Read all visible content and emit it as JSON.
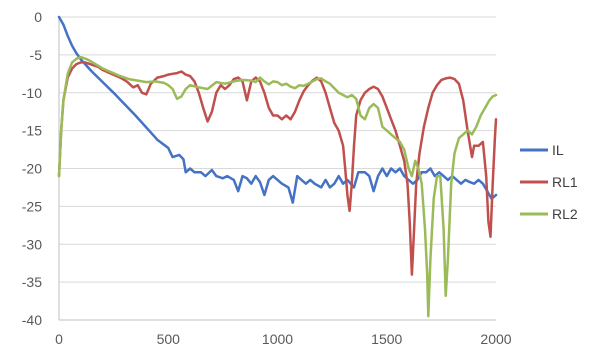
{
  "chart_data": {
    "type": "line",
    "title": "",
    "xlabel": "",
    "ylabel": "",
    "xlim": [
      0,
      2000
    ],
    "ylim": [
      -40,
      0
    ],
    "x_ticks": [
      0,
      500,
      1000,
      1500,
      2000
    ],
    "y_ticks": [
      0,
      -5,
      -10,
      -15,
      -20,
      -25,
      -30,
      -35,
      -40
    ],
    "x_tick_labels": [
      "0",
      "500",
      "1000",
      "1500",
      "2000"
    ],
    "y_tick_labels": [
      "0",
      "-5",
      "-10",
      "-15",
      "-20",
      "-25",
      "-30",
      "-35",
      "-40"
    ],
    "grid": "horizontal",
    "legend_position": "right",
    "series": [
      {
        "name": "IL",
        "color": "#4472c4",
        "points": [
          [
            0,
            0
          ],
          [
            20,
            -1
          ],
          [
            40,
            -2.5
          ],
          [
            60,
            -3.8
          ],
          [
            80,
            -4.8
          ],
          [
            100,
            -5.6
          ],
          [
            150,
            -7.2
          ],
          [
            200,
            -8.6
          ],
          [
            250,
            -10
          ],
          [
            300,
            -11.5
          ],
          [
            350,
            -13
          ],
          [
            400,
            -14.6
          ],
          [
            450,
            -16.2
          ],
          [
            500,
            -17.3
          ],
          [
            520,
            -18.5
          ],
          [
            550,
            -18.2
          ],
          [
            570,
            -18.8
          ],
          [
            580,
            -20.5
          ],
          [
            600,
            -20
          ],
          [
            620,
            -20.5
          ],
          [
            650,
            -20.5
          ],
          [
            670,
            -21
          ],
          [
            700,
            -20.2
          ],
          [
            720,
            -21
          ],
          [
            750,
            -21.3
          ],
          [
            770,
            -21
          ],
          [
            800,
            -21.5
          ],
          [
            820,
            -23
          ],
          [
            840,
            -21
          ],
          [
            860,
            -21.3
          ],
          [
            880,
            -22
          ],
          [
            900,
            -21
          ],
          [
            920,
            -21.8
          ],
          [
            940,
            -23.5
          ],
          [
            960,
            -21.5
          ],
          [
            980,
            -21
          ],
          [
            1000,
            -21.5
          ],
          [
            1020,
            -22
          ],
          [
            1050,
            -22.5
          ],
          [
            1070,
            -24.5
          ],
          [
            1090,
            -21
          ],
          [
            1110,
            -21.5
          ],
          [
            1130,
            -22
          ],
          [
            1150,
            -21.5
          ],
          [
            1170,
            -22
          ],
          [
            1200,
            -22.5
          ],
          [
            1220,
            -21.5
          ],
          [
            1240,
            -22.5
          ],
          [
            1260,
            -22
          ],
          [
            1280,
            -21
          ],
          [
            1300,
            -22
          ],
          [
            1320,
            -21.5
          ],
          [
            1350,
            -22.5
          ],
          [
            1370,
            -20.5
          ],
          [
            1400,
            -20.5
          ],
          [
            1420,
            -21
          ],
          [
            1440,
            -23
          ],
          [
            1460,
            -21
          ],
          [
            1480,
            -20
          ],
          [
            1500,
            -21
          ],
          [
            1520,
            -20
          ],
          [
            1540,
            -20.5
          ],
          [
            1560,
            -20
          ],
          [
            1580,
            -21
          ],
          [
            1600,
            -21.5
          ],
          [
            1620,
            -22
          ],
          [
            1640,
            -21.5
          ],
          [
            1660,
            -20.5
          ],
          [
            1680,
            -20.5
          ],
          [
            1700,
            -20
          ],
          [
            1720,
            -21
          ],
          [
            1740,
            -20.5
          ],
          [
            1760,
            -21
          ],
          [
            1780,
            -21.5
          ],
          [
            1800,
            -21
          ],
          [
            1820,
            -21.5
          ],
          [
            1840,
            -22
          ],
          [
            1860,
            -21.5
          ],
          [
            1880,
            -21.8
          ],
          [
            1900,
            -22
          ],
          [
            1920,
            -21.5
          ],
          [
            1940,
            -22
          ],
          [
            1960,
            -23
          ],
          [
            1980,
            -24
          ],
          [
            2000,
            -23.5
          ]
        ]
      },
      {
        "name": "RL1",
        "color": "#c0504d",
        "points": [
          [
            0,
            -21
          ],
          [
            10,
            -15
          ],
          [
            20,
            -11
          ],
          [
            40,
            -8
          ],
          [
            60,
            -6.8
          ],
          [
            80,
            -6.2
          ],
          [
            100,
            -6
          ],
          [
            120,
            -6
          ],
          [
            150,
            -6.3
          ],
          [
            180,
            -6.6
          ],
          [
            200,
            -7
          ],
          [
            240,
            -7.5
          ],
          [
            280,
            -8
          ],
          [
            310,
            -8.5
          ],
          [
            340,
            -9.3
          ],
          [
            360,
            -9
          ],
          [
            380,
            -10
          ],
          [
            400,
            -10.2
          ],
          [
            420,
            -8.8
          ],
          [
            450,
            -8
          ],
          [
            480,
            -7.8
          ],
          [
            500,
            -7.6
          ],
          [
            520,
            -7.5
          ],
          [
            540,
            -7.4
          ],
          [
            560,
            -7.2
          ],
          [
            580,
            -7.6
          ],
          [
            600,
            -7.8
          ],
          [
            620,
            -8.5
          ],
          [
            640,
            -10
          ],
          [
            660,
            -12
          ],
          [
            680,
            -13.8
          ],
          [
            700,
            -12.5
          ],
          [
            720,
            -10
          ],
          [
            740,
            -9
          ],
          [
            760,
            -9.5
          ],
          [
            780,
            -9
          ],
          [
            800,
            -8.2
          ],
          [
            820,
            -8
          ],
          [
            840,
            -8.5
          ],
          [
            860,
            -11
          ],
          [
            880,
            -8.5
          ],
          [
            900,
            -8
          ],
          [
            920,
            -8.5
          ],
          [
            940,
            -10
          ],
          [
            960,
            -12
          ],
          [
            980,
            -13
          ],
          [
            1000,
            -13
          ],
          [
            1020,
            -13.5
          ],
          [
            1040,
            -13
          ],
          [
            1060,
            -13.5
          ],
          [
            1080,
            -12.5
          ],
          [
            1100,
            -11
          ],
          [
            1120,
            -9.8
          ],
          [
            1140,
            -9
          ],
          [
            1160,
            -8.4
          ],
          [
            1180,
            -8
          ],
          [
            1200,
            -8.5
          ],
          [
            1220,
            -10
          ],
          [
            1240,
            -12
          ],
          [
            1260,
            -14
          ],
          [
            1280,
            -15
          ],
          [
            1300,
            -17
          ],
          [
            1310,
            -20
          ],
          [
            1320,
            -23.5
          ],
          [
            1330,
            -25.6
          ],
          [
            1340,
            -22
          ],
          [
            1350,
            -17
          ],
          [
            1360,
            -13
          ],
          [
            1380,
            -11
          ],
          [
            1400,
            -10
          ],
          [
            1420,
            -9.5
          ],
          [
            1440,
            -9.2
          ],
          [
            1460,
            -9.5
          ],
          [
            1480,
            -10.5
          ],
          [
            1500,
            -12
          ],
          [
            1520,
            -13.5
          ],
          [
            1540,
            -15
          ],
          [
            1560,
            -17
          ],
          [
            1580,
            -19
          ],
          [
            1595,
            -22
          ],
          [
            1605,
            -27
          ],
          [
            1615,
            -34
          ],
          [
            1625,
            -28
          ],
          [
            1635,
            -22
          ],
          [
            1650,
            -18
          ],
          [
            1670,
            -14.5
          ],
          [
            1690,
            -12
          ],
          [
            1710,
            -10
          ],
          [
            1730,
            -9
          ],
          [
            1750,
            -8.3
          ],
          [
            1770,
            -8.1
          ],
          [
            1790,
            -8
          ],
          [
            1810,
            -8.2
          ],
          [
            1830,
            -8.8
          ],
          [
            1850,
            -11
          ],
          [
            1870,
            -15
          ],
          [
            1890,
            -18.5
          ],
          [
            1900,
            -17
          ],
          [
            1920,
            -17
          ],
          [
            1940,
            -16.5
          ],
          [
            1955,
            -21
          ],
          [
            1965,
            -27
          ],
          [
            1975,
            -29
          ],
          [
            1985,
            -22
          ],
          [
            1995,
            -16
          ],
          [
            2000,
            -13.5
          ]
        ]
      },
      {
        "name": "RL2",
        "color": "#9bbb59",
        "points": [
          [
            0,
            -21
          ],
          [
            10,
            -15
          ],
          [
            20,
            -11
          ],
          [
            40,
            -7.5
          ],
          [
            60,
            -6
          ],
          [
            80,
            -5.5
          ],
          [
            100,
            -5.3
          ],
          [
            130,
            -5.6
          ],
          [
            160,
            -6.1
          ],
          [
            200,
            -6.8
          ],
          [
            240,
            -7.3
          ],
          [
            280,
            -7.8
          ],
          [
            320,
            -8.2
          ],
          [
            360,
            -8.4
          ],
          [
            400,
            -8.6
          ],
          [
            440,
            -8.5
          ],
          [
            480,
            -8.7
          ],
          [
            500,
            -9
          ],
          [
            520,
            -9.5
          ],
          [
            540,
            -10.8
          ],
          [
            560,
            -10.5
          ],
          [
            580,
            -9.5
          ],
          [
            600,
            -9
          ],
          [
            640,
            -9.3
          ],
          [
            680,
            -9.5
          ],
          [
            720,
            -8.6
          ],
          [
            760,
            -8.8
          ],
          [
            800,
            -8.5
          ],
          [
            840,
            -8.3
          ],
          [
            880,
            -8.4
          ],
          [
            900,
            -8.6
          ],
          [
            920,
            -8
          ],
          [
            940,
            -8.5
          ],
          [
            960,
            -8.9
          ],
          [
            980,
            -8.5
          ],
          [
            1000,
            -8.6
          ],
          [
            1020,
            -9
          ],
          [
            1040,
            -8.8
          ],
          [
            1060,
            -9.2
          ],
          [
            1080,
            -9.4
          ],
          [
            1100,
            -9
          ],
          [
            1120,
            -9.1
          ],
          [
            1140,
            -8.8
          ],
          [
            1160,
            -8.5
          ],
          [
            1180,
            -8.2
          ],
          [
            1200,
            -8.1
          ],
          [
            1220,
            -8.5
          ],
          [
            1240,
            -8.8
          ],
          [
            1260,
            -9.4
          ],
          [
            1280,
            -10
          ],
          [
            1300,
            -10.3
          ],
          [
            1320,
            -10.6
          ],
          [
            1340,
            -10.3
          ],
          [
            1360,
            -10.8
          ],
          [
            1380,
            -13
          ],
          [
            1400,
            -13.5
          ],
          [
            1420,
            -12
          ],
          [
            1440,
            -11.5
          ],
          [
            1460,
            -12
          ],
          [
            1480,
            -14.5
          ],
          [
            1500,
            -15
          ],
          [
            1520,
            -15.5
          ],
          [
            1540,
            -16
          ],
          [
            1560,
            -16.5
          ],
          [
            1580,
            -17.5
          ],
          [
            1600,
            -20
          ],
          [
            1615,
            -21
          ],
          [
            1630,
            -19
          ],
          [
            1645,
            -20
          ],
          [
            1660,
            -22
          ],
          [
            1675,
            -28
          ],
          [
            1685,
            -34
          ],
          [
            1690,
            -39.5
          ],
          [
            1700,
            -32
          ],
          [
            1715,
            -24
          ],
          [
            1730,
            -21
          ],
          [
            1745,
            -21
          ],
          [
            1760,
            -28
          ],
          [
            1770,
            -36.8
          ],
          [
            1780,
            -32
          ],
          [
            1795,
            -22
          ],
          [
            1810,
            -18
          ],
          [
            1830,
            -16
          ],
          [
            1850,
            -15.5
          ],
          [
            1870,
            -15
          ],
          [
            1890,
            -15.5
          ],
          [
            1910,
            -14.5
          ],
          [
            1930,
            -13
          ],
          [
            1950,
            -12
          ],
          [
            1970,
            -11
          ],
          [
            1985,
            -10.5
          ],
          [
            2000,
            -10.3
          ]
        ]
      }
    ]
  }
}
